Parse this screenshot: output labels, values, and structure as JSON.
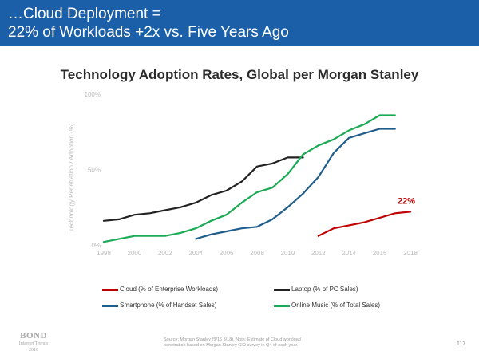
{
  "header": {
    "line1": "…Cloud Deployment =",
    "line2": "22% of Workloads +2x vs. Five Years Ago"
  },
  "chart_data": {
    "type": "line",
    "title": "Technology Adoption Rates, Global per Morgan Stanley",
    "ylabel": "Technology Penetration / Adoption (%)",
    "xlabel": "",
    "x_ticks": [
      "1998",
      "2000",
      "2002",
      "2004",
      "2006",
      "2008",
      "2010",
      "2012",
      "2014",
      "2016",
      "2018"
    ],
    "y_ticks": [
      "0%",
      "50%",
      "100%"
    ],
    "xlim": [
      1998,
      2018
    ],
    "ylim": [
      0,
      100
    ],
    "series": [
      {
        "name": "Cloud (% of Enterprise Workloads)",
        "color": "#c00000",
        "x": [
          2012,
          2013,
          2014,
          2015,
          2016,
          2017,
          2018
        ],
        "y": [
          6,
          11,
          13,
          15,
          18,
          21,
          22
        ]
      },
      {
        "name": "Laptop (% of PC Sales)",
        "color": "#222222",
        "x": [
          1998,
          1999,
          2000,
          2001,
          2002,
          2003,
          2004,
          2005,
          2006,
          2007,
          2008,
          2009,
          2010,
          2011
        ],
        "y": [
          16,
          17,
          20,
          21,
          23,
          25,
          28,
          33,
          36,
          42,
          52,
          54,
          58,
          58
        ]
      },
      {
        "name": "Smartphone (% of Handset Sales)",
        "color": "#1f5d8a",
        "x": [
          2004,
          2005,
          2006,
          2007,
          2008,
          2009,
          2010,
          2011,
          2012,
          2013,
          2014,
          2015,
          2016,
          2017
        ],
        "y": [
          4,
          7,
          9,
          11,
          12,
          17,
          25,
          34,
          45,
          61,
          71,
          74,
          77,
          77
        ]
      },
      {
        "name": "Online Music (% of Total Sales)",
        "color": "#1aaa55",
        "x": [
          1998,
          1999,
          2000,
          2001,
          2002,
          2003,
          2004,
          2005,
          2006,
          2007,
          2008,
          2009,
          2010,
          2011,
          2012,
          2013,
          2014,
          2015,
          2016,
          2017
        ],
        "y": [
          2,
          4,
          6,
          6,
          6,
          8,
          11,
          16,
          20,
          28,
          35,
          38,
          47,
          60,
          66,
          70,
          76,
          80,
          86,
          86
        ]
      }
    ],
    "annotation": {
      "text": "22%",
      "color": "#c00000"
    },
    "grid": false,
    "legend_placement": "bottom"
  },
  "legend": {
    "cloud": "Cloud (% of Enterprise Workloads)",
    "laptop": "Laptop (% of PC Sales)",
    "smartphone": "Smartphone (% of Handset Sales)",
    "music": "Online Music (% of Total Sales)"
  },
  "footer": {
    "brand": "BOND",
    "brand_sub1": "Internet Trends",
    "brand_sub2": "2018",
    "source_line1": "Source: Morgan Stanley (5/16 3/18). Note: Estimate of Cloud workload",
    "source_line2": "penetration based on Morgan Stanley CIO survey in Q4 of each year.",
    "page_number": "117"
  }
}
